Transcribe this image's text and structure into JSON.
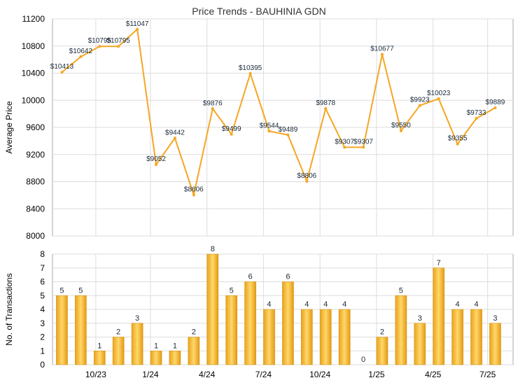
{
  "chart_data": [
    {
      "type": "line",
      "title": "Price Trends - BAUHINIA GDN",
      "ylabel": "Average Price",
      "ylim": [
        8000,
        11200
      ],
      "yticks": [
        8000,
        8400,
        8800,
        9200,
        9600,
        10000,
        10400,
        10800,
        11200
      ],
      "grid": true,
      "color": "#f5a623",
      "series": [
        {
          "values": [
            10413,
            10642,
            10795,
            10795,
            11047,
            9052,
            9442,
            8606,
            9876,
            9499,
            10395,
            9544,
            9489,
            8806,
            9878,
            9307,
            9307,
            10677,
            9550,
            9923,
            10023,
            9355,
            9733,
            9889
          ],
          "labels": [
            "$10413",
            "$10642",
            "$10795",
            "$10795",
            "$11047",
            "$9052",
            "$9442",
            "$8606",
            "$9876",
            "$9499",
            "$10395",
            "$9544",
            "$9489",
            "$8806",
            "$9878",
            "$9307",
            "$9307",
            "$10677",
            "$9550",
            "$9923",
            "$10023",
            "$9355",
            "$9733",
            "$9889"
          ]
        }
      ]
    },
    {
      "type": "bar",
      "ylabel": "No. of Transactions",
      "ylim": [
        0,
        8
      ],
      "yticks": [
        0,
        1,
        2,
        3,
        4,
        5,
        6,
        7,
        8
      ],
      "grid": true,
      "color": "#f5b82e",
      "xticks": [
        "10/23",
        "1/24",
        "4/24",
        "7/24",
        "10/24",
        "1/25",
        "4/25",
        "7/25"
      ],
      "values": [
        5,
        5,
        1,
        2,
        3,
        1,
        1,
        2,
        8,
        5,
        6,
        4,
        6,
        4,
        4,
        4,
        0,
        2,
        5,
        3,
        7,
        4,
        4,
        3
      ]
    }
  ]
}
